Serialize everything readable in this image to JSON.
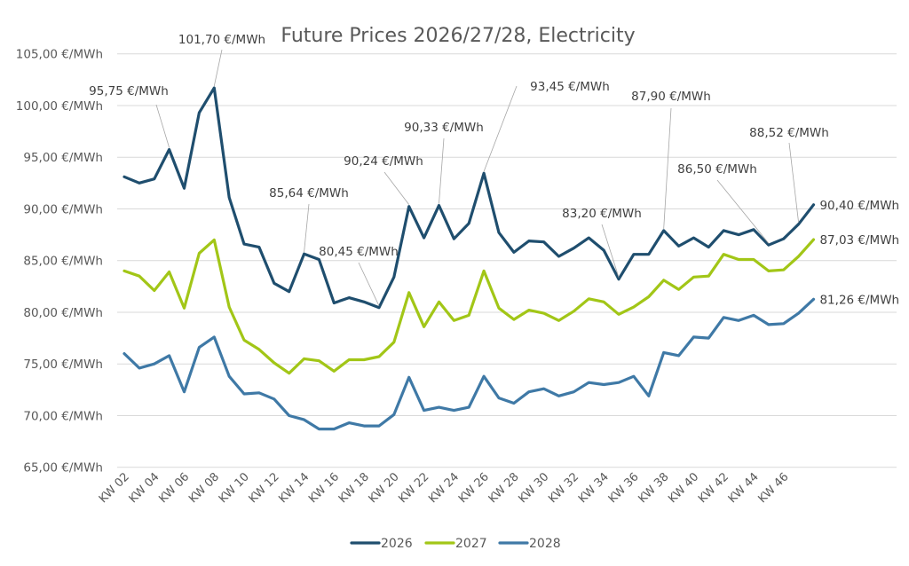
{
  "chart_data": {
    "type": "line",
    "title": "Future Prices 2026/27/28, Electricity",
    "xlabel": "",
    "ylabel": "",
    "ylim": [
      65,
      105
    ],
    "y_ticks": [
      65,
      70,
      75,
      80,
      85,
      90,
      95,
      100,
      105
    ],
    "y_tick_labels": [
      "65,00 €/MWh",
      "70,00 €/MWh",
      "75,00 €/MWh",
      "80,00 €/MWh",
      "85,00 €/MWh",
      "90,00 €/MWh",
      "95,00 €/MWh",
      "100,00 €/MWh",
      "105,00 €/MWh"
    ],
    "grid": true,
    "legend_position": "bottom",
    "x": [
      "KW 02",
      "KW 03",
      "KW 04",
      "KW 05",
      "KW 06",
      "KW 07",
      "KW 08",
      "KW 09",
      "KW 10",
      "KW 11",
      "KW 12",
      "KW 13",
      "KW 14",
      "KW 15",
      "KW 16",
      "KW 17",
      "KW 18",
      "KW 19",
      "KW 20",
      "KW 21",
      "KW 22",
      "KW 23",
      "KW 24",
      "KW 25",
      "KW 26",
      "KW 27",
      "KW 28",
      "KW 29",
      "KW 30",
      "KW 31",
      "KW 32",
      "KW 33",
      "KW 34",
      "KW 35",
      "KW 36",
      "KW 37",
      "KW 38",
      "KW 39",
      "KW 40",
      "KW 41",
      "KW 42",
      "KW 43",
      "KW 44",
      "KW 45",
      "KW 46",
      "KW 47",
      "KW 48"
    ],
    "x_tick_labels": [
      "KW 02",
      "KW 04",
      "KW 06",
      "KW 08",
      "KW 10",
      "KW 12",
      "KW 14",
      "KW 16",
      "KW 18",
      "KW 20",
      "KW 22",
      "KW 24",
      "KW 26",
      "KW 28",
      "KW 30",
      "KW 32",
      "KW 34",
      "KW 36",
      "KW 38",
      "KW 40",
      "KW 42",
      "KW 44",
      "KW 46"
    ],
    "series": [
      {
        "name": "2026",
        "color": "#1f4e6e",
        "values": [
          93.1,
          92.5,
          92.9,
          95.75,
          92.0,
          99.3,
          101.7,
          91.1,
          86.6,
          86.3,
          82.8,
          82.0,
          85.64,
          85.1,
          80.9,
          81.4,
          81.0,
          80.45,
          83.4,
          90.24,
          87.2,
          90.33,
          87.1,
          88.6,
          93.45,
          87.7,
          85.8,
          86.9,
          86.8,
          85.4,
          86.2,
          87.2,
          86.0,
          83.2,
          85.6,
          85.6,
          87.9,
          86.4,
          87.2,
          86.3,
          87.9,
          87.5,
          88.0,
          86.5,
          87.1,
          88.52,
          90.4
        ]
      },
      {
        "name": "2027",
        "color": "#a2c617",
        "values": [
          84.0,
          83.5,
          82.1,
          83.9,
          80.4,
          85.7,
          87.0,
          80.5,
          77.3,
          76.4,
          75.1,
          74.1,
          75.5,
          75.3,
          74.3,
          75.4,
          75.4,
          75.7,
          77.1,
          81.9,
          78.6,
          81.0,
          79.2,
          79.7,
          84.0,
          80.4,
          79.3,
          80.2,
          79.9,
          79.2,
          80.1,
          81.3,
          81.0,
          79.8,
          80.5,
          81.5,
          83.1,
          82.2,
          83.4,
          83.5,
          85.6,
          85.1,
          85.1,
          84.0,
          84.1,
          85.4,
          87.03
        ]
      },
      {
        "name": "2028",
        "color": "#3f79a6",
        "values": [
          76.0,
          74.6,
          75.0,
          75.8,
          72.3,
          76.6,
          77.6,
          73.8,
          72.1,
          72.2,
          71.6,
          70.0,
          69.6,
          68.7,
          68.7,
          69.3,
          69.0,
          69.0,
          70.1,
          73.7,
          70.5,
          70.8,
          70.5,
          70.8,
          73.8,
          71.7,
          71.2,
          72.3,
          72.6,
          71.9,
          72.3,
          73.2,
          73.0,
          73.2,
          73.8,
          71.9,
          76.1,
          75.8,
          77.6,
          77.5,
          79.5,
          79.2,
          79.7,
          78.8,
          78.9,
          79.9,
          81.26
        ]
      }
    ],
    "annotations": [
      {
        "series": "2026",
        "x": "KW 05",
        "value": 95.75,
        "label": "95,75 €/MWh"
      },
      {
        "series": "2026",
        "x": "KW 08",
        "value": 101.7,
        "label": "101,70 €/MWh"
      },
      {
        "series": "2026",
        "x": "KW 14",
        "value": 85.64,
        "label": "85,64 €/MWh"
      },
      {
        "series": "2026",
        "x": "KW 19",
        "value": 80.45,
        "label": "80,45 €/MWh"
      },
      {
        "series": "2026",
        "x": "KW 21",
        "value": 90.24,
        "label": "90,24 €/MWh"
      },
      {
        "series": "2026",
        "x": "KW 23",
        "value": 90.33,
        "label": "90,33 €/MWh"
      },
      {
        "series": "2026",
        "x": "KW 26",
        "value": 93.45,
        "label": "93,45 €/MWh"
      },
      {
        "series": "2026",
        "x": "KW 35",
        "value": 83.2,
        "label": "83,20 €/MWh"
      },
      {
        "series": "2026",
        "x": "KW 38",
        "value": 87.9,
        "label": "87,90 €/MWh"
      },
      {
        "series": "2026",
        "x": "KW 45",
        "value": 86.5,
        "label": "86,50 €/MWh"
      },
      {
        "series": "2026",
        "x": "KW 47",
        "value": 88.52,
        "label": "88,52 €/MWh"
      },
      {
        "series": "2026",
        "x": "KW 48",
        "value": 90.4,
        "label": "90,40 €/MWh"
      },
      {
        "series": "2027",
        "x": "KW 48",
        "value": 87.03,
        "label": "87,03 €/MWh"
      },
      {
        "series": "2028",
        "x": "KW 48",
        "value": 81.26,
        "label": "81,26 €/MWh"
      }
    ]
  }
}
